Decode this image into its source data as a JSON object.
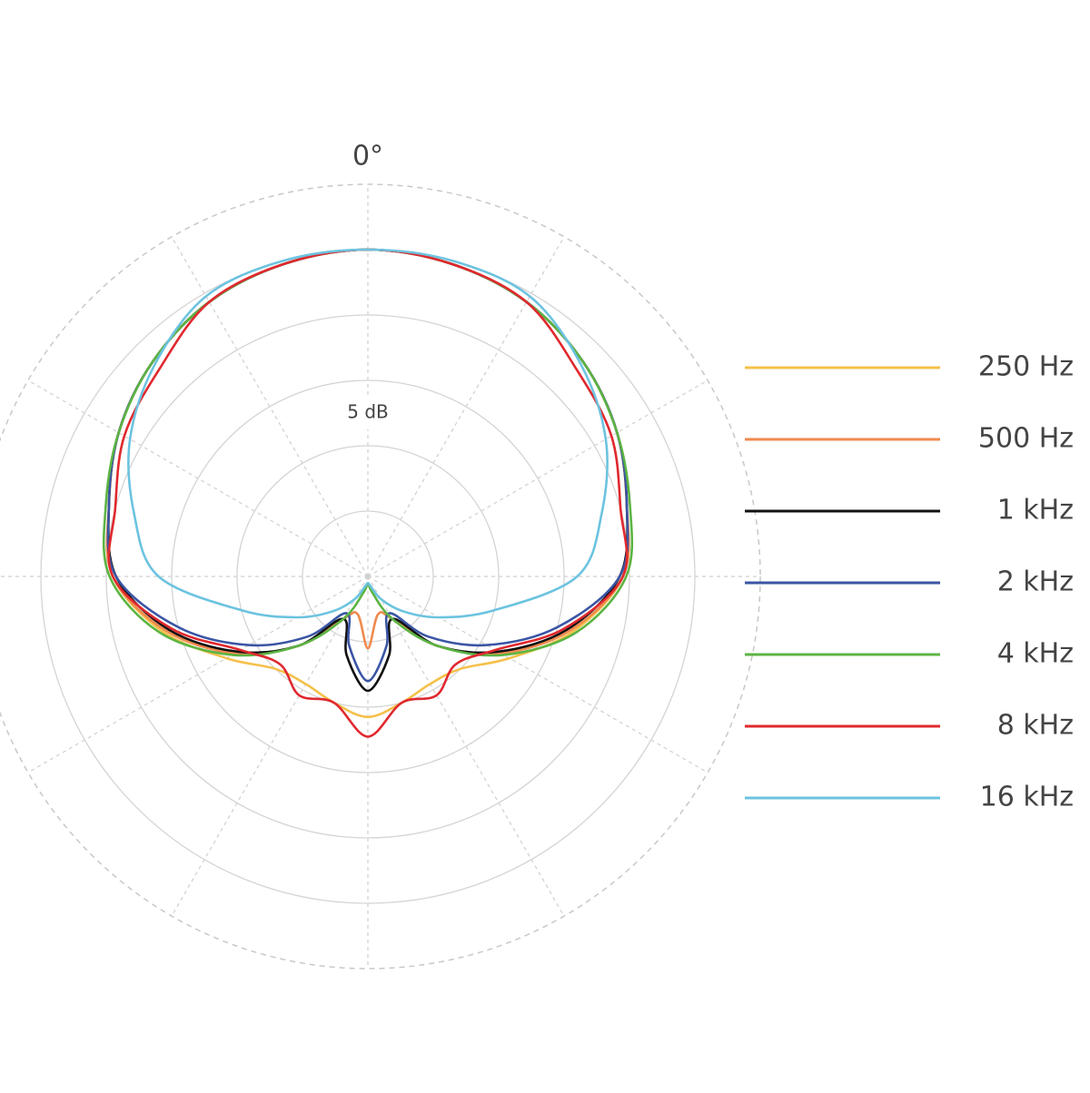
{
  "chart_data": {
    "type": "polar",
    "theta": [
      0,
      15,
      30,
      45,
      60,
      75,
      90,
      105,
      120,
      135,
      150,
      165,
      180,
      195,
      210,
      225,
      240,
      255,
      270,
      285,
      300,
      315,
      330,
      345
    ],
    "rlim": [
      0,
      1.2
    ],
    "rgrid": [
      0.2,
      0.4,
      0.6,
      0.8,
      1.0
    ],
    "thetagrid": [
      0,
      30,
      60,
      90,
      120,
      150,
      180,
      210,
      240,
      270,
      300,
      330
    ],
    "thetaticks": [
      {
        "value": 0,
        "label": "0°"
      }
    ],
    "annotation": "5 dB",
    "series": [
      {
        "name": "250 Hz",
        "color": "#f5c04a",
        "values": [
          1.0,
          0.99,
          0.97,
          0.93,
          0.88,
          0.82,
          0.78,
          0.65,
          0.5,
          0.4,
          0.38,
          0.4,
          0.43,
          0.4,
          0.38,
          0.4,
          0.5,
          0.65,
          0.78,
          0.82,
          0.88,
          0.93,
          0.97,
          0.99
        ]
      },
      {
        "name": "500 Hz",
        "color": "#f08a4e",
        "values": [
          1.0,
          0.99,
          0.97,
          0.93,
          0.88,
          0.82,
          0.78,
          0.64,
          0.47,
          0.3,
          0.15,
          0.12,
          0.22,
          0.12,
          0.15,
          0.3,
          0.47,
          0.64,
          0.78,
          0.82,
          0.88,
          0.93,
          0.97,
          0.99
        ]
      },
      {
        "name": "1 kHz",
        "color": "#111111",
        "values": [
          1.0,
          0.99,
          0.97,
          0.93,
          0.88,
          0.82,
          0.77,
          0.63,
          0.46,
          0.3,
          0.15,
          0.25,
          0.35,
          0.25,
          0.15,
          0.3,
          0.46,
          0.63,
          0.77,
          0.82,
          0.88,
          0.93,
          0.97,
          0.99
        ]
      },
      {
        "name": "2 kHz",
        "color": "#3a55a4",
        "values": [
          1.0,
          0.99,
          0.97,
          0.93,
          0.88,
          0.82,
          0.77,
          0.6,
          0.42,
          0.26,
          0.13,
          0.22,
          0.32,
          0.22,
          0.13,
          0.26,
          0.42,
          0.6,
          0.77,
          0.82,
          0.88,
          0.93,
          0.97,
          0.99
        ]
      },
      {
        "name": "4 kHz",
        "color": "#5cb443",
        "values": [
          1.0,
          0.99,
          0.97,
          0.93,
          0.88,
          0.83,
          0.79,
          0.66,
          0.48,
          0.3,
          0.15,
          0.05,
          0.02,
          0.05,
          0.15,
          0.3,
          0.48,
          0.66,
          0.79,
          0.83,
          0.88,
          0.93,
          0.97,
          0.99
        ]
      },
      {
        "name": "8 kHz",
        "color": "#e0282e",
        "values": [
          1.0,
          0.99,
          0.97,
          0.9,
          0.86,
          0.8,
          0.78,
          0.62,
          0.45,
          0.38,
          0.42,
          0.4,
          0.49,
          0.4,
          0.42,
          0.38,
          0.45,
          0.62,
          0.78,
          0.8,
          0.86,
          0.9,
          0.97,
          0.99
        ]
      },
      {
        "name": "16 kHz",
        "color": "#6cc3e0",
        "values": [
          1.0,
          1.0,
          0.99,
          0.92,
          0.84,
          0.74,
          0.64,
          0.4,
          0.25,
          0.15,
          0.08,
          0.03,
          0.02,
          0.03,
          0.08,
          0.15,
          0.25,
          0.4,
          0.64,
          0.74,
          0.84,
          0.92,
          0.99,
          1.0
        ]
      }
    ]
  }
}
